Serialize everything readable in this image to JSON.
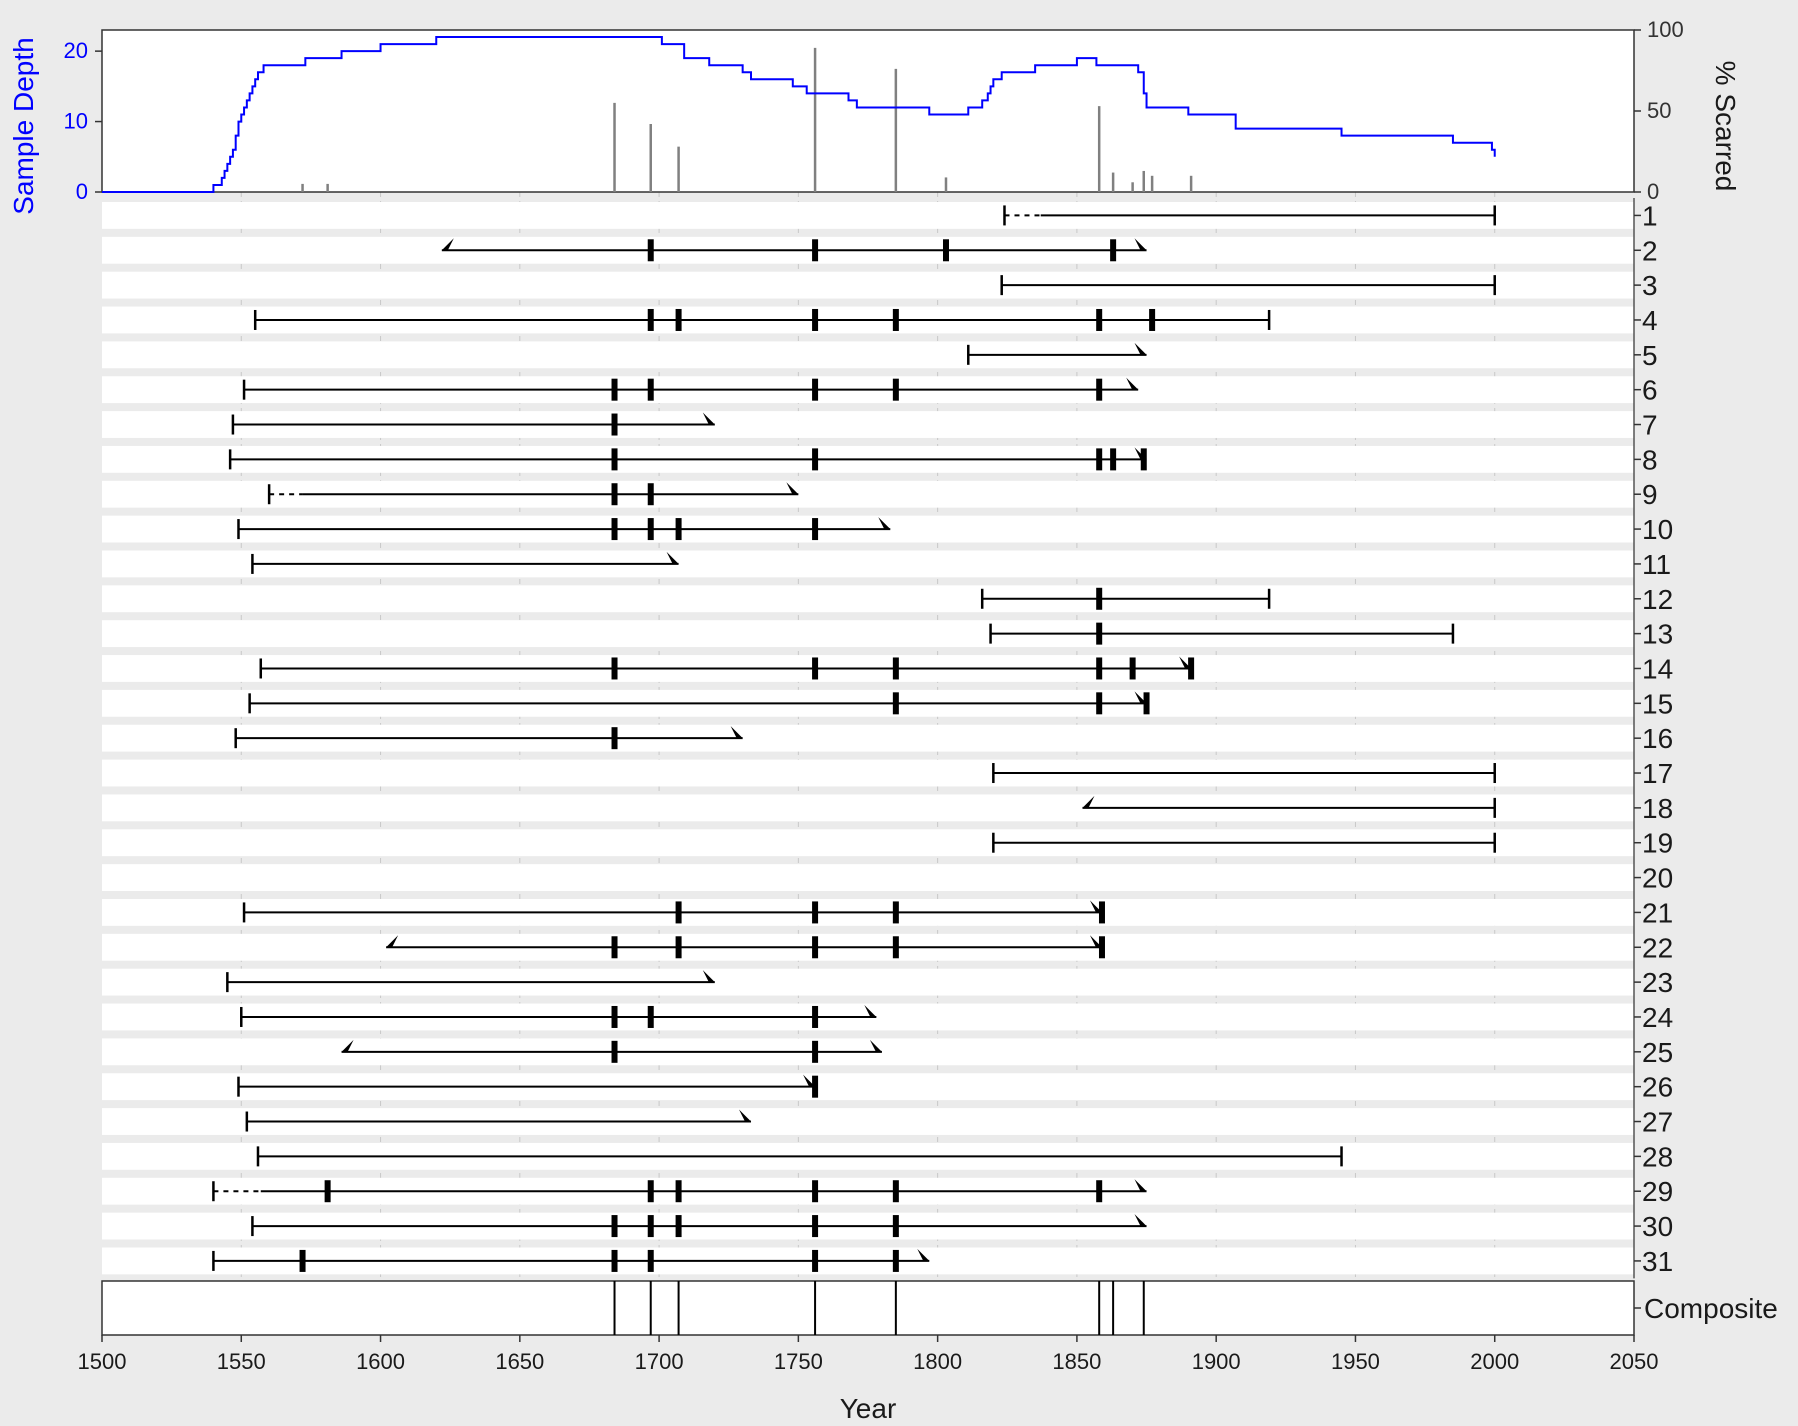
{
  "chart_data": {
    "type": "fire-history",
    "title": "",
    "xlabel": "Year",
    "xlim": [
      1500,
      2050
    ],
    "x_ticks": [
      1500,
      1550,
      1600,
      1650,
      1700,
      1750,
      1800,
      1850,
      1900,
      1950,
      2000,
      2050
    ],
    "sample_depth": {
      "ylabel": "Sample Depth",
      "ylim": [
        0,
        23
      ],
      "y_ticks": [
        0,
        10,
        20
      ],
      "color": "#0000ff",
      "steps": [
        [
          1500,
          0
        ],
        [
          1540,
          1
        ],
        [
          1543,
          2
        ],
        [
          1544,
          3
        ],
        [
          1545,
          4
        ],
        [
          1546,
          5
        ],
        [
          1547,
          6
        ],
        [
          1548,
          8
        ],
        [
          1549,
          10
        ],
        [
          1550,
          11
        ],
        [
          1551,
          12
        ],
        [
          1552,
          13
        ],
        [
          1553,
          14
        ],
        [
          1554,
          15
        ],
        [
          1555,
          16
        ],
        [
          1556,
          17
        ],
        [
          1558,
          18
        ],
        [
          1573,
          19
        ],
        [
          1586,
          20
        ],
        [
          1600,
          21
        ],
        [
          1620,
          22
        ],
        [
          1701,
          21
        ],
        [
          1709,
          19
        ],
        [
          1718,
          18
        ],
        [
          1730,
          17
        ],
        [
          1733,
          16
        ],
        [
          1748,
          15
        ],
        [
          1753,
          14
        ],
        [
          1768,
          13
        ],
        [
          1771,
          12
        ],
        [
          1797,
          11
        ],
        [
          1811,
          12
        ],
        [
          1816,
          13
        ],
        [
          1818,
          14
        ],
        [
          1819,
          15
        ],
        [
          1820,
          16
        ],
        [
          1823,
          17
        ],
        [
          1835,
          18
        ],
        [
          1850,
          19
        ],
        [
          1857,
          18
        ],
        [
          1872,
          17
        ],
        [
          1874,
          14
        ],
        [
          1875,
          12
        ],
        [
          1890,
          11
        ],
        [
          1907,
          9
        ],
        [
          1945,
          8
        ],
        [
          1985,
          7
        ],
        [
          1999,
          6
        ],
        [
          2000,
          5
        ]
      ]
    },
    "percent_scarred": {
      "ylabel": "% Scarred",
      "ylim": [
        0,
        100
      ],
      "y_ticks": [
        0,
        50,
        100
      ],
      "color": "#808080",
      "bars": [
        {
          "year": 1572,
          "pct": 5
        },
        {
          "year": 1581,
          "pct": 5
        },
        {
          "year": 1684,
          "pct": 55
        },
        {
          "year": 1697,
          "pct": 42
        },
        {
          "year": 1707,
          "pct": 28
        },
        {
          "year": 1756,
          "pct": 89
        },
        {
          "year": 1785,
          "pct": 76
        },
        {
          "year": 1803,
          "pct": 9
        },
        {
          "year": 1858,
          "pct": 53
        },
        {
          "year": 1863,
          "pct": 12
        },
        {
          "year": 1870,
          "pct": 6
        },
        {
          "year": 1874,
          "pct": 13
        },
        {
          "year": 1877,
          "pct": 10
        },
        {
          "year": 1891,
          "pct": 10
        }
      ]
    },
    "series": [
      {
        "name": "1",
        "start": 1824,
        "start_type": "pith",
        "end": 2000,
        "end_type": "bark",
        "recorder_start": 1837,
        "scars": []
      },
      {
        "name": "2",
        "start": 1622,
        "start_type": "inner",
        "end": 1875,
        "end_type": "outer",
        "scars": [
          1697,
          1756,
          1803,
          1863
        ]
      },
      {
        "name": "3",
        "start": 1823,
        "start_type": "pith",
        "end": 2000,
        "end_type": "bark",
        "scars": []
      },
      {
        "name": "4",
        "start": 1555,
        "start_type": "pith",
        "end": 1919,
        "end_type": "bark",
        "scars": [
          1697,
          1707,
          1756,
          1785,
          1858,
          1877
        ]
      },
      {
        "name": "5",
        "start": 1811,
        "start_type": "pith",
        "end": 1875,
        "end_type": "outer",
        "scars": []
      },
      {
        "name": "6",
        "start": 1551,
        "start_type": "pith",
        "end": 1872,
        "end_type": "outer",
        "scars": [
          1684,
          1697,
          1756,
          1785,
          1858
        ]
      },
      {
        "name": "7",
        "start": 1547,
        "start_type": "pith",
        "end": 1720,
        "end_type": "outer",
        "scars": [
          1684
        ]
      },
      {
        "name": "8",
        "start": 1546,
        "start_type": "pith",
        "end": 1875,
        "end_type": "outer",
        "scars": [
          1684,
          1756,
          1858,
          1863,
          1874
        ]
      },
      {
        "name": "9",
        "start": 1560,
        "start_type": "pith",
        "end": 1750,
        "end_type": "outer",
        "recorder_start": 1572,
        "scars": [
          1684,
          1697
        ]
      },
      {
        "name": "10",
        "start": 1549,
        "start_type": "pith",
        "end": 1783,
        "end_type": "outer",
        "scars": [
          1684,
          1697,
          1707,
          1756
        ]
      },
      {
        "name": "11",
        "start": 1554,
        "start_type": "pith",
        "end": 1707,
        "end_type": "outer",
        "scars": []
      },
      {
        "name": "12",
        "start": 1816,
        "start_type": "pith",
        "end": 1919,
        "end_type": "bark",
        "scars": [
          1858
        ]
      },
      {
        "name": "13",
        "start": 1819,
        "start_type": "pith",
        "end": 1985,
        "end_type": "bark",
        "scars": [
          1858
        ]
      },
      {
        "name": "14",
        "start": 1557,
        "start_type": "pith",
        "end": 1891,
        "end_type": "outer",
        "scars": [
          1684,
          1756,
          1785,
          1858,
          1870,
          1891
        ]
      },
      {
        "name": "15",
        "start": 1553,
        "start_type": "pith",
        "end": 1875,
        "end_type": "outer",
        "scars": [
          1785,
          1858,
          1875
        ]
      },
      {
        "name": "16",
        "start": 1548,
        "start_type": "pith",
        "end": 1730,
        "end_type": "outer",
        "scars": [
          1684
        ]
      },
      {
        "name": "17",
        "start": 1820,
        "start_type": "pith",
        "end": 2000,
        "end_type": "bark",
        "scars": []
      },
      {
        "name": "18",
        "start": 1852,
        "start_type": "inner",
        "end": 2000,
        "end_type": "bark",
        "scars": []
      },
      {
        "name": "19",
        "start": 1820,
        "start_type": "pith",
        "end": 2000,
        "end_type": "bark",
        "scars": []
      },
      {
        "name": "20",
        "start": null,
        "start_type": "none",
        "end": null,
        "end_type": "none",
        "scars": []
      },
      {
        "name": "21",
        "start": 1551,
        "start_type": "pith",
        "end": 1859,
        "end_type": "outer",
        "scars": [
          1707,
          1756,
          1785,
          1859
        ]
      },
      {
        "name": "22",
        "start": 1602,
        "start_type": "inner",
        "end": 1859,
        "end_type": "outer",
        "scars": [
          1684,
          1707,
          1756,
          1785,
          1859
        ]
      },
      {
        "name": "23",
        "start": 1545,
        "start_type": "pith",
        "end": 1720,
        "end_type": "outer",
        "scars": []
      },
      {
        "name": "24",
        "start": 1550,
        "start_type": "pith",
        "end": 1778,
        "end_type": "outer",
        "scars": [
          1684,
          1697,
          1756
        ]
      },
      {
        "name": "25",
        "start": 1586,
        "start_type": "inner",
        "end": 1780,
        "end_type": "outer",
        "scars": [
          1684,
          1756
        ]
      },
      {
        "name": "26",
        "start": 1549,
        "start_type": "pith",
        "end": 1756,
        "end_type": "outer",
        "scars": [
          1756
        ]
      },
      {
        "name": "27",
        "start": 1552,
        "start_type": "pith",
        "end": 1733,
        "end_type": "outer",
        "scars": []
      },
      {
        "name": "28",
        "start": 1556,
        "start_type": "pith",
        "end": 1945,
        "end_type": "bark",
        "scars": []
      },
      {
        "name": "29",
        "start": 1540,
        "start_type": "pith",
        "end": 1875,
        "end_type": "outer",
        "recorder_start": 1557,
        "scars": [
          1581,
          1697,
          1707,
          1756,
          1785,
          1858
        ]
      },
      {
        "name": "30",
        "start": 1554,
        "start_type": "pith",
        "end": 1875,
        "end_type": "outer",
        "scars": [
          1684,
          1697,
          1707,
          1756,
          1785
        ]
      },
      {
        "name": "31",
        "start": 1540,
        "start_type": "pith",
        "end": 1797,
        "end_type": "outer",
        "scars": [
          1572,
          1684,
          1697,
          1756,
          1785
        ]
      }
    ],
    "composite": {
      "label": "Composite",
      "years": [
        1684,
        1697,
        1707,
        1756,
        1785,
        1858,
        1863,
        1874
      ]
    }
  }
}
